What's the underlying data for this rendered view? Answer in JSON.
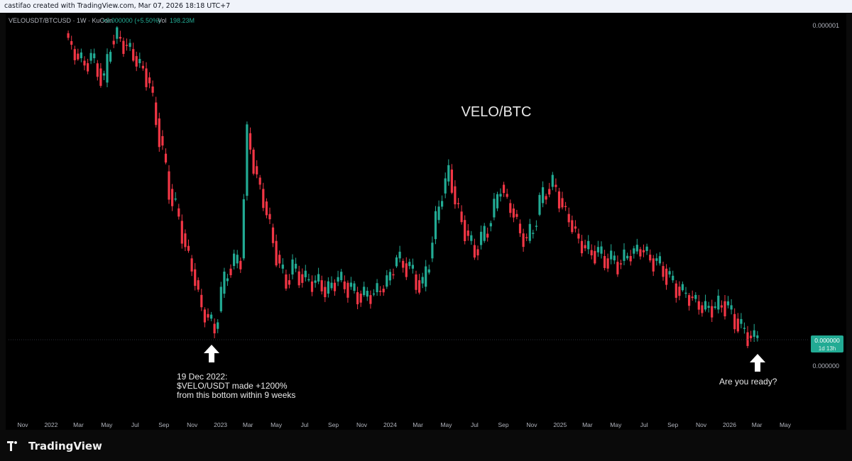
{
  "header": {
    "created_by": "castifao created with TradingView.com, Mar 07, 2026 18:18 UTC+7"
  },
  "legend": {
    "symbol": "VELOUSDT/BTCUSD · 1W · KuCoin",
    "change": "+0.000000 (+5.50%)",
    "volume_label": "Vol",
    "volume_value": "198.23M"
  },
  "colors": {
    "up": "#22ab94",
    "down": "#f23645",
    "text": "#e0e3eb",
    "axis_text": "#b2b5be",
    "price_tag": "#22ab94"
  },
  "annotations": {
    "title": "VELO/BTC",
    "bottom_note_lines": [
      "19 Dec 2022:",
      "$VELO/USDT made +1200%",
      "from this bottom within 9 weeks"
    ],
    "ready_note": "Are you ready?",
    "arrow_icon": "up-arrow-icon"
  },
  "price_axis": {
    "top_label": "0.000001",
    "bottom_label": "0.000000",
    "current_price": "0.000000",
    "countdown": "1d 13h"
  },
  "footer": {
    "brand": "TradingView",
    "logo_icon": "tradingview-logo-icon"
  },
  "chart_data": {
    "type": "candlestick",
    "title": "VELO/BTC",
    "interval": "1W",
    "x_tick_labels": [
      "Nov",
      "2022",
      "Mar",
      "May",
      "Jul",
      "Sep",
      "Nov",
      "2023",
      "Mar",
      "May",
      "Jul",
      "Sep",
      "Nov",
      "2024",
      "Mar",
      "May",
      "Jul",
      "Sep",
      "Nov",
      "2025",
      "Mar",
      "May",
      "Jul",
      "Sep",
      "Nov",
      "2026",
      "Mar",
      "May"
    ],
    "x_tick_dates": [
      "2021-11-01",
      "2022-01-01",
      "2022-03-01",
      "2022-05-01",
      "2022-07-01",
      "2022-09-01",
      "2022-11-01",
      "2023-01-01",
      "2023-03-01",
      "2023-05-01",
      "2023-07-01",
      "2023-09-01",
      "2023-11-01",
      "2024-01-01",
      "2024-03-01",
      "2024-05-01",
      "2024-07-01",
      "2024-09-01",
      "2024-11-01",
      "2025-01-01",
      "2025-03-01",
      "2025-05-01",
      "2025-07-01",
      "2025-09-01",
      "2025-11-01",
      "2026-01-01",
      "2026-03-01",
      "2026-05-01"
    ],
    "y_tick_labels": [
      "0.000001",
      "0.000000"
    ],
    "ylim": [
      3e-08,
      1.3e-06
    ],
    "close_series": [
      [
        "2022-01-31",
        1.2e-06
      ],
      [
        "2022-02-14",
        1e-06
      ],
      [
        "2022-02-28",
        9e-07
      ],
      [
        "2022-03-14",
        8.5e-07
      ],
      [
        "2022-03-28",
        9e-07
      ],
      [
        "2022-04-11",
        8e-07
      ],
      [
        "2022-04-25",
        6.8e-07
      ],
      [
        "2022-05-09",
        1.1e-06
      ],
      [
        "2022-05-23",
        1.15e-06
      ],
      [
        "2022-06-06",
        1.05e-06
      ],
      [
        "2022-06-20",
        1e-06
      ],
      [
        "2022-07-04",
        8.5e-07
      ],
      [
        "2022-07-18",
        8e-07
      ],
      [
        "2022-08-01",
        6.5e-07
      ],
      [
        "2022-08-15",
        4.5e-07
      ],
      [
        "2022-08-29",
        3e-07
      ],
      [
        "2022-09-12",
        2e-07
      ],
      [
        "2022-09-26",
        1.6e-07
      ],
      [
        "2022-10-10",
        1.2e-07
      ],
      [
        "2022-10-24",
        9e-08
      ],
      [
        "2022-11-07",
        7e-08
      ],
      [
        "2022-11-21",
        5e-08
      ],
      [
        "2022-12-05",
        4.5e-08
      ],
      [
        "2022-12-19",
        4e-08
      ],
      [
        "2023-01-02",
        6e-08
      ],
      [
        "2023-01-16",
        8e-08
      ],
      [
        "2023-01-30",
        8.5e-08
      ],
      [
        "2023-02-13",
        9e-08
      ],
      [
        "2023-02-27",
        3.8e-07
      ],
      [
        "2023-03-13",
        2.6e-07
      ],
      [
        "2023-03-27",
        2e-07
      ],
      [
        "2023-04-10",
        1.5e-07
      ],
      [
        "2023-04-24",
        1.1e-07
      ],
      [
        "2023-05-08",
        8e-08
      ],
      [
        "2023-05-22",
        7e-08
      ],
      [
        "2023-06-05",
        8e-08
      ],
      [
        "2023-06-19",
        7.5e-08
      ],
      [
        "2023-07-03",
        7e-08
      ],
      [
        "2023-07-17",
        6.8e-08
      ],
      [
        "2023-07-31",
        7e-08
      ],
      [
        "2023-08-14",
        6e-08
      ],
      [
        "2023-08-28",
        6.8e-08
      ],
      [
        "2023-09-11",
        7e-08
      ],
      [
        "2023-09-25",
        6.8e-08
      ],
      [
        "2023-10-09",
        6.2e-08
      ],
      [
        "2023-10-23",
        6e-08
      ],
      [
        "2023-11-06",
        5.8e-08
      ],
      [
        "2023-11-20",
        6e-08
      ],
      [
        "2023-12-04",
        6.2e-08
      ],
      [
        "2023-12-18",
        6.5e-08
      ],
      [
        "2024-01-01",
        7.5e-08
      ],
      [
        "2024-01-15",
        9e-08
      ],
      [
        "2024-01-29",
        8.5e-08
      ],
      [
        "2024-02-12",
        8e-08
      ],
      [
        "2024-02-26",
        7e-08
      ],
      [
        "2024-03-11",
        6.5e-08
      ],
      [
        "2024-03-25",
        9e-08
      ],
      [
        "2024-04-08",
        1.4e-07
      ],
      [
        "2024-04-22",
        1.9e-07
      ],
      [
        "2024-05-06",
        2.5e-07
      ],
      [
        "2024-05-20",
        1.7e-07
      ],
      [
        "2024-06-03",
        1.4e-07
      ],
      [
        "2024-06-17",
        1.1e-07
      ],
      [
        "2024-07-01",
        1e-07
      ],
      [
        "2024-07-15",
        1.1e-07
      ],
      [
        "2024-07-29",
        1.3e-07
      ],
      [
        "2024-08-12",
        1.6e-07
      ],
      [
        "2024-08-26",
        2.1e-07
      ],
      [
        "2024-09-09",
        1.7e-07
      ],
      [
        "2024-09-23",
        1.5e-07
      ],
      [
        "2024-10-07",
        1.2e-07
      ],
      [
        "2024-10-21",
        1.1e-07
      ],
      [
        "2024-11-04",
        1.3e-07
      ],
      [
        "2024-11-18",
        1.7e-07
      ],
      [
        "2024-12-02",
        2e-07
      ],
      [
        "2024-12-16",
        2.1e-07
      ],
      [
        "2024-12-30",
        1.8e-07
      ],
      [
        "2025-01-13",
        1.5e-07
      ],
      [
        "2025-01-27",
        1.3e-07
      ],
      [
        "2025-02-10",
        1.1e-07
      ],
      [
        "2025-02-24",
        1e-07
      ],
      [
        "2025-03-10",
        9.8e-08
      ],
      [
        "2025-03-24",
        9.5e-08
      ],
      [
        "2025-04-07",
        9e-08
      ],
      [
        "2025-04-21",
        8.8e-08
      ],
      [
        "2025-05-05",
        8.5e-08
      ],
      [
        "2025-05-19",
        9e-08
      ],
      [
        "2025-06-02",
        9.5e-08
      ],
      [
        "2025-06-16",
        1e-07
      ],
      [
        "2025-06-30",
        9.8e-08
      ],
      [
        "2025-07-14",
        9e-08
      ],
      [
        "2025-07-28",
        8.5e-08
      ],
      [
        "2025-08-11",
        8e-08
      ],
      [
        "2025-08-25",
        7e-08
      ],
      [
        "2025-09-08",
        6.5e-08
      ],
      [
        "2025-09-22",
        6e-08
      ],
      [
        "2025-10-06",
        5.8e-08
      ],
      [
        "2025-10-20",
        5.5e-08
      ],
      [
        "2025-11-03",
        5e-08
      ],
      [
        "2025-11-17",
        5.2e-08
      ],
      [
        "2025-12-01",
        5e-08
      ],
      [
        "2025-12-15",
        5.5e-08
      ],
      [
        "2025-12-29",
        5e-08
      ],
      [
        "2026-01-12",
        4.5e-08
      ],
      [
        "2026-01-26",
        4e-08
      ],
      [
        "2026-02-09",
        3.7e-08
      ],
      [
        "2026-02-23",
        3.6e-08
      ],
      [
        "2026-03-02",
        3.8e-08
      ]
    ]
  }
}
